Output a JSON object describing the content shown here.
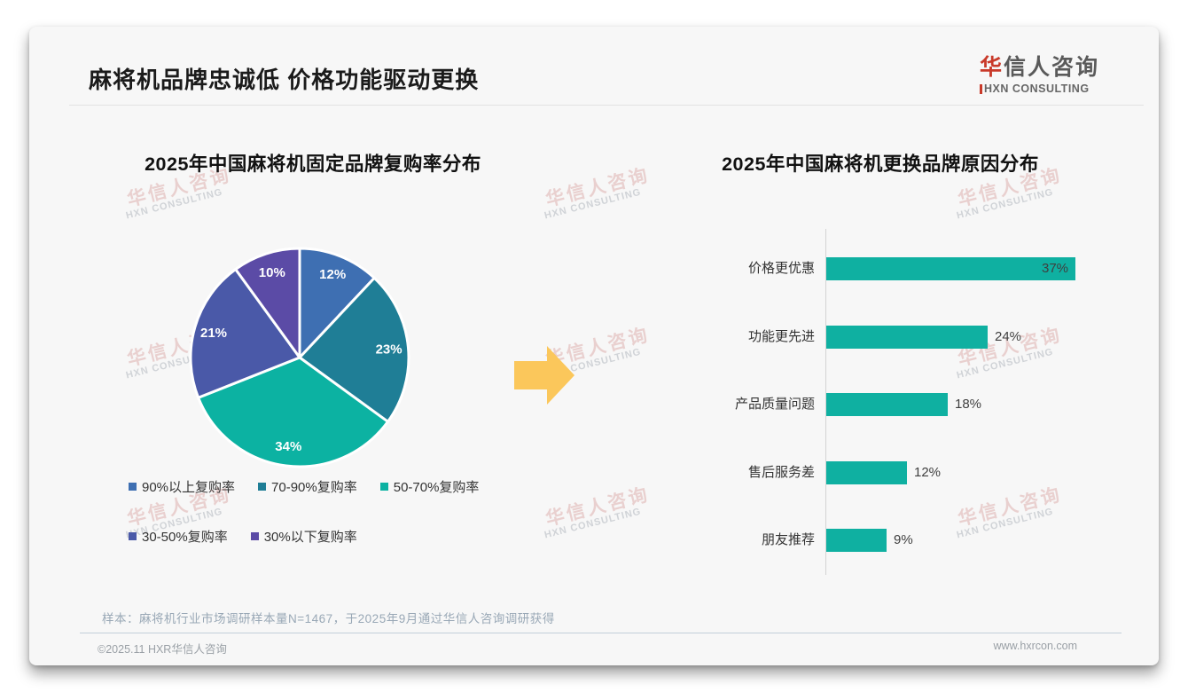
{
  "page": {
    "title": "麻将机品牌忠诚低 价格功能驱动更换",
    "logo": {
      "cn_first": "华",
      "cn_rest": "信人咨询",
      "en": "HXN CONSULTING"
    },
    "watermark": {
      "cn": "华信人咨询",
      "en": "HXN CONSULTING"
    },
    "footnote": "样本：麻将机行业市场调研样本量N=1467，于2025年9月通过华信人咨询调研获得",
    "footer_left": "©2025.11 HXR华信人咨询",
    "footer_right": "www.hxrcon.com"
  },
  "colors": {
    "card_bg": "#f7f7f7",
    "accent_red": "#c93a2a",
    "bar_teal": "#0fb0a1",
    "arrow_yellow": "#fbc75b"
  },
  "chart_data": [
    {
      "type": "pie",
      "title": "2025年中国麻将机固定品牌复购率分布",
      "labels": [
        "90%以上复购率",
        "70-90%复购率",
        "50-70%复购率",
        "30-50%复购率",
        "30%以下复购率"
      ],
      "values": [
        12,
        23,
        34,
        21,
        10
      ],
      "slice_colors": [
        "#3e6fb2",
        "#1f7e96",
        "#0cb2a2",
        "#4a59a8",
        "#5b4ba6"
      ],
      "data_labels": [
        "12%",
        "23%",
        "34%",
        "21%",
        "10%"
      ],
      "start_angle_deg": 0,
      "direction": "clockwise",
      "legend_position": "bottom",
      "legend_rows": [
        3,
        2
      ]
    },
    {
      "type": "bar",
      "title": "2025年中国麻将机更换品牌原因分布",
      "orientation": "horizontal",
      "categories": [
        "价格更优惠",
        "功能更先进",
        "产品质量问题",
        "售后服务差",
        "朋友推荐"
      ],
      "values": [
        37,
        24,
        18,
        12,
        9
      ],
      "value_labels": [
        "37%",
        "24%",
        "18%",
        "12%",
        "9%"
      ],
      "xlim": [
        0,
        40
      ],
      "grid": false,
      "axis": "left-vertical-line-only"
    }
  ]
}
